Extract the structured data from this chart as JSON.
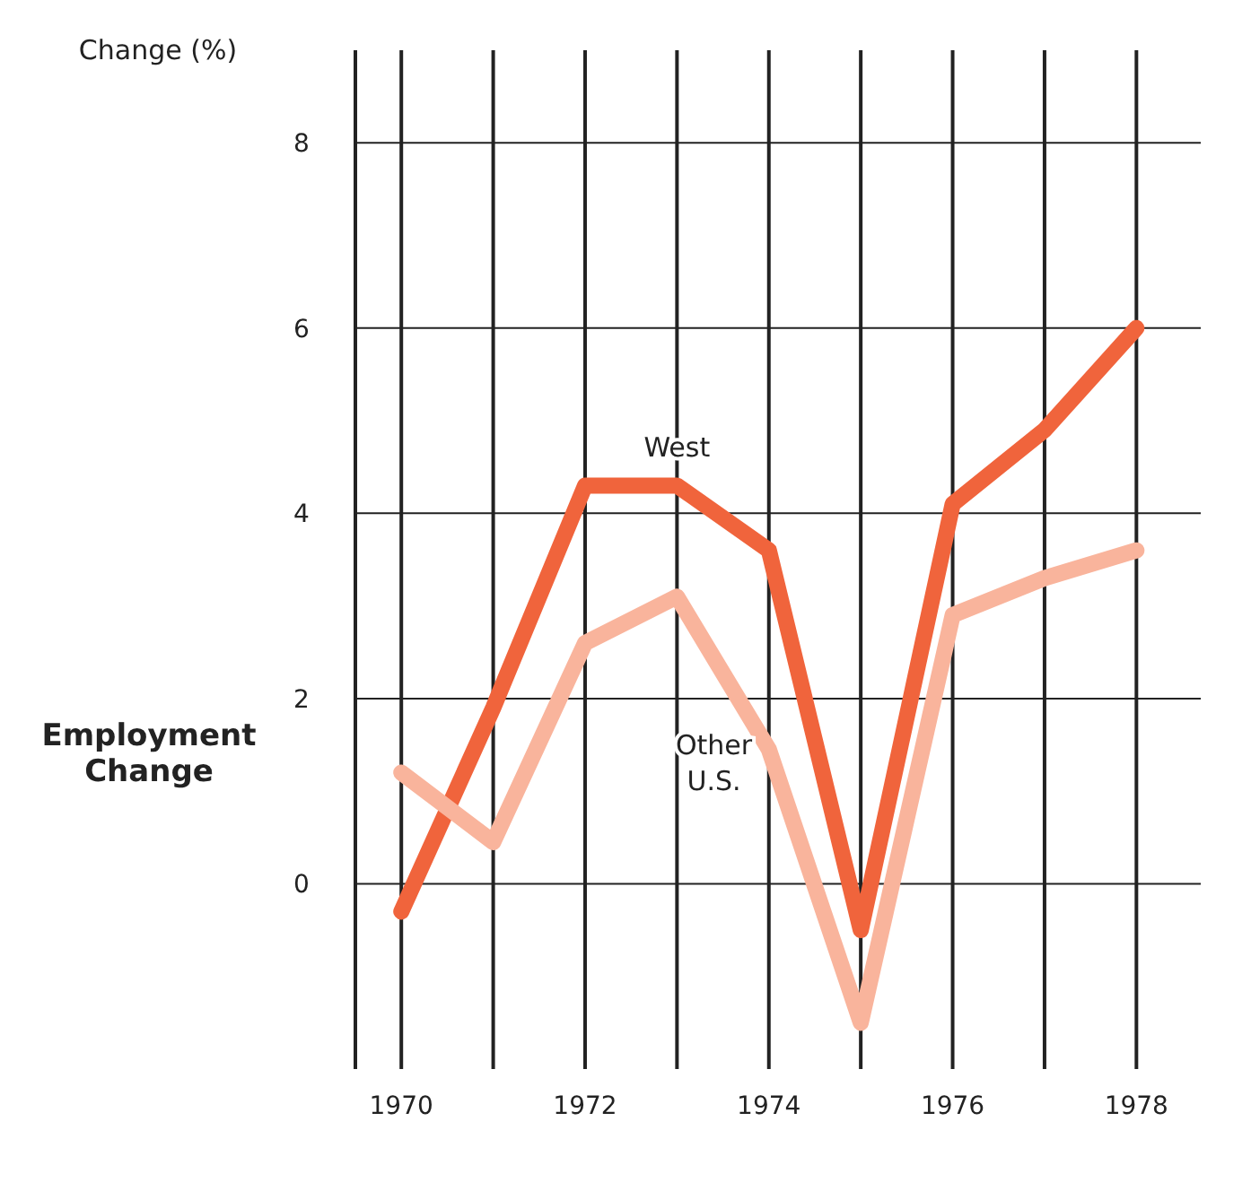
{
  "chart_data": {
    "type": "line",
    "title": "Employment Change",
    "ylabel": "Change (%)",
    "x": [
      1970,
      1971,
      1972,
      1973,
      1974,
      1975,
      1976,
      1977,
      1978
    ],
    "series": [
      {
        "name": "West",
        "color": "#f0643c",
        "values": [
          -0.3,
          1.9,
          4.3,
          4.3,
          3.6,
          -0.5,
          4.1,
          4.9,
          6.0
        ]
      },
      {
        "name": "Other U.S.",
        "color": "#f9b49c",
        "values": [
          1.2,
          0.45,
          2.6,
          3.1,
          1.45,
          -1.5,
          2.9,
          3.3,
          3.6
        ]
      }
    ],
    "xlim": [
      1969.5,
      1978.7
    ],
    "xticks": [
      1970,
      {
        "value": 1971,
        "label": null
      },
      1972,
      {
        "value": 1973,
        "label": null
      },
      1974,
      {
        "value": 1975,
        "label": null
      },
      1976,
      {
        "value": 1977,
        "label": null
      },
      1978
    ],
    "ylim": [
      -2,
      9
    ],
    "yticks": [
      0,
      2,
      4,
      6,
      8
    ],
    "grid": true,
    "marker": "none",
    "line_style": "solid"
  }
}
